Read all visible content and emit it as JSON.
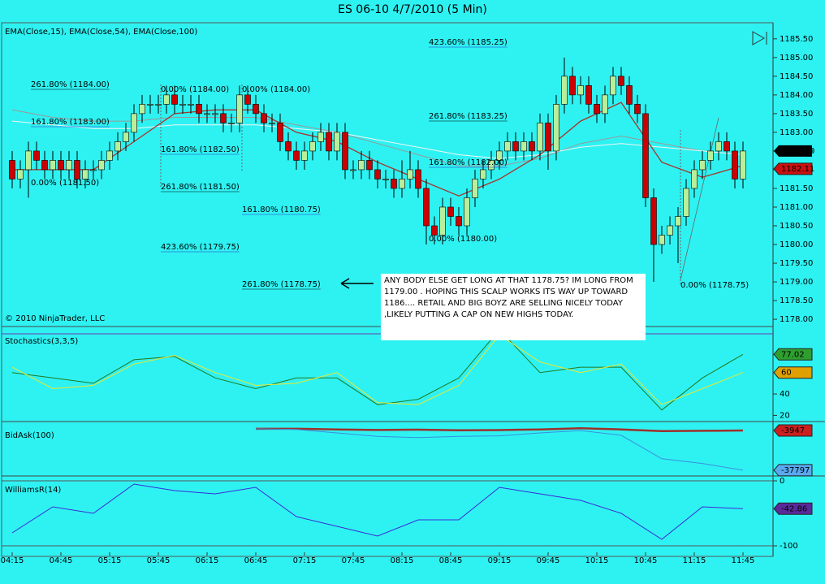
{
  "chart_data": [
    {
      "type": "candlestick",
      "title": "ES 06-10  4/7/2010 (5 Min)",
      "label": "EMA(Close,15), EMA(Close,54), EMA(Close,100)",
      "copyright": "© 2010 NinjaTrader, LLC",
      "note": "ANY BODY ELSE GET LONG AT THAT 1178.75? IM LONG FROM 1179.00 . HOPING THIS SCALP WORKS ITS WAY UP TOWARD 1186.... RETAIL AND BIG BOYZ ARE SELLING NICELY TODAY ,LIKELY PUTTING A CAP ON NEW HIGHS TODAY.",
      "x": [
        "04:15",
        "04:20",
        "04:25",
        "04:30",
        "04:35",
        "04:40",
        "04:45",
        "04:50",
        "04:55",
        "05:00",
        "05:05",
        "05:10",
        "05:15",
        "05:20",
        "05:25",
        "05:30",
        "05:35",
        "05:40",
        "05:45",
        "05:50",
        "05:55",
        "06:00",
        "06:05",
        "06:10",
        "06:15",
        "06:20",
        "06:25",
        "06:30",
        "06:35",
        "06:40",
        "06:45",
        "06:50",
        "06:55",
        "07:00",
        "07:05",
        "07:10",
        "07:15",
        "07:20",
        "07:25",
        "07:30",
        "07:35",
        "07:40",
        "07:45",
        "07:50",
        "07:55",
        "08:00",
        "08:05",
        "08:10",
        "08:15",
        "08:20",
        "08:25",
        "08:30",
        "08:35",
        "08:40",
        "08:45",
        "08:50",
        "08:55",
        "09:00",
        "09:05",
        "09:10",
        "09:15",
        "09:20",
        "09:25",
        "09:30",
        "09:35",
        "09:40",
        "09:45",
        "09:50",
        "09:55",
        "10:00",
        "10:05",
        "10:10",
        "10:15",
        "10:20",
        "10:25",
        "10:30",
        "10:35",
        "10:40",
        "10:45",
        "10:50",
        "10:55",
        "11:00",
        "11:05",
        "11:10",
        "11:15",
        "11:20",
        "11:25",
        "11:30",
        "11:35",
        "11:40",
        "11:45"
      ],
      "open": [
        1182.25,
        1181.75,
        1182.0,
        1182.5,
        1182.25,
        1182.0,
        1182.25,
        1182.0,
        1182.25,
        1181.75,
        1182.0,
        1182.0,
        1182.25,
        1182.5,
        1182.75,
        1183.0,
        1183.5,
        1183.75,
        1183.75,
        1183.75,
        1184.0,
        1183.75,
        1183.75,
        1183.75,
        1183.5,
        1183.5,
        1183.5,
        1183.25,
        1183.25,
        1184.0,
        1183.75,
        1183.5,
        1183.25,
        1183.25,
        1182.75,
        1182.5,
        1182.25,
        1182.5,
        1182.75,
        1183.0,
        1182.5,
        1183.0,
        1182.0,
        1182.0,
        1182.25,
        1182.0,
        1181.75,
        1181.75,
        1181.5,
        1181.75,
        1182.0,
        1181.5,
        1180.5,
        1180.25,
        1181.0,
        1180.75,
        1180.5,
        1181.25,
        1181.75,
        1182.0,
        1182.25,
        1182.5,
        1182.75,
        1182.5,
        1182.75,
        1182.5,
        1183.25,
        1182.5,
        1183.75,
        1184.5,
        1184.0,
        1184.25,
        1183.75,
        1183.5,
        1184.0,
        1184.5,
        1184.25,
        1183.75,
        1183.5,
        1181.25,
        1180.0,
        1180.25,
        1180.5,
        1180.75,
        1181.5,
        1182.0,
        1182.25,
        1182.5,
        1182.75,
        1182.5,
        1181.75
      ],
      "high": [
        1182.5,
        1182.25,
        1182.75,
        1182.75,
        1182.5,
        1182.5,
        1182.5,
        1182.5,
        1182.5,
        1182.25,
        1182.25,
        1182.5,
        1182.75,
        1183.0,
        1183.25,
        1183.75,
        1184.0,
        1184.0,
        1184.0,
        1184.25,
        1184.25,
        1184.0,
        1184.0,
        1184.0,
        1183.75,
        1183.75,
        1183.75,
        1183.5,
        1184.25,
        1184.25,
        1184.0,
        1183.75,
        1183.5,
        1183.5,
        1183.0,
        1182.75,
        1182.75,
        1183.0,
        1183.25,
        1183.25,
        1183.25,
        1183.25,
        1182.25,
        1182.5,
        1182.5,
        1182.25,
        1182.0,
        1182.0,
        1182.25,
        1182.5,
        1182.25,
        1181.75,
        1180.75,
        1181.25,
        1181.25,
        1181.0,
        1181.5,
        1182.0,
        1182.25,
        1182.5,
        1182.75,
        1183.0,
        1183.0,
        1183.0,
        1183.0,
        1183.5,
        1183.5,
        1184.0,
        1185.0,
        1184.75,
        1184.5,
        1184.5,
        1184.0,
        1184.25,
        1184.75,
        1184.75,
        1184.5,
        1184.0,
        1183.75,
        1181.5,
        1180.5,
        1180.75,
        1181.0,
        1181.75,
        1182.25,
        1182.5,
        1182.75,
        1183.0,
        1183.0,
        1182.75,
        1182.75
      ],
      "low": [
        1181.5,
        1181.5,
        1181.25,
        1182.0,
        1181.75,
        1181.75,
        1181.75,
        1181.75,
        1181.5,
        1181.5,
        1181.75,
        1181.75,
        1182.0,
        1182.25,
        1182.5,
        1182.75,
        1183.25,
        1183.5,
        1183.5,
        1183.5,
        1183.5,
        1183.5,
        1183.5,
        1183.25,
        1183.25,
        1183.25,
        1183.0,
        1183.0,
        1183.0,
        1183.5,
        1183.25,
        1183.0,
        1183.0,
        1182.5,
        1182.25,
        1182.0,
        1182.0,
        1182.25,
        1182.5,
        1182.25,
        1182.25,
        1181.75,
        1181.75,
        1181.75,
        1181.75,
        1181.5,
        1181.5,
        1181.25,
        1181.25,
        1181.5,
        1181.25,
        1180.0,
        1180.0,
        1180.0,
        1180.5,
        1180.25,
        1180.25,
        1181.0,
        1181.5,
        1181.75,
        1182.0,
        1182.25,
        1182.25,
        1182.25,
        1182.25,
        1182.25,
        1182.0,
        1182.25,
        1183.5,
        1183.75,
        1183.75,
        1183.5,
        1183.25,
        1183.25,
        1183.75,
        1184.0,
        1183.5,
        1183.25,
        1181.0,
        1179.0,
        1179.75,
        1180.0,
        1179.5,
        1180.5,
        1181.25,
        1181.75,
        1182.0,
        1182.25,
        1182.25,
        1181.5,
        1181.5
      ],
      "close": [
        1181.75,
        1182.0,
        1182.5,
        1182.25,
        1182.0,
        1182.25,
        1182.0,
        1182.25,
        1181.75,
        1182.0,
        1182.0,
        1182.25,
        1182.5,
        1182.75,
        1183.0,
        1183.5,
        1183.75,
        1183.75,
        1183.75,
        1184.0,
        1183.75,
        1183.75,
        1183.75,
        1183.5,
        1183.5,
        1183.5,
        1183.25,
        1183.25,
        1184.0,
        1183.75,
        1183.5,
        1183.25,
        1183.25,
        1182.75,
        1182.5,
        1182.25,
        1182.5,
        1182.75,
        1183.0,
        1182.5,
        1183.0,
        1182.0,
        1182.0,
        1182.25,
        1182.0,
        1181.75,
        1181.75,
        1181.5,
        1181.75,
        1182.0,
        1181.5,
        1180.5,
        1180.25,
        1181.0,
        1180.75,
        1180.5,
        1181.25,
        1181.75,
        1182.0,
        1182.25,
        1182.5,
        1182.75,
        1182.5,
        1182.75,
        1182.5,
        1183.25,
        1182.5,
        1183.75,
        1184.5,
        1184.0,
        1184.25,
        1183.75,
        1183.5,
        1184.0,
        1184.5,
        1184.25,
        1183.75,
        1183.5,
        1181.25,
        1180.0,
        1180.25,
        1180.5,
        1180.75,
        1181.5,
        1182.0,
        1182.25,
        1182.5,
        1182.75,
        1182.5,
        1181.75,
        1182.5
      ],
      "last_label": "1182.50",
      "up_color": "#b9ef9a",
      "down_color": "#cc0000",
      "ylim": [
        1177.85,
        1185.8
      ],
      "yticks": [
        {
          "value": 1178.0,
          "label": "1178.00"
        },
        {
          "value": 1178.5,
          "label": "1178.50"
        },
        {
          "value": 1179.0,
          "label": "1179.00"
        },
        {
          "value": 1179.5,
          "label": "1179.50"
        },
        {
          "value": 1180.0,
          "label": "1180.00"
        },
        {
          "value": 1180.5,
          "label": "1180.50"
        },
        {
          "value": 1181.0,
          "label": "1181.00"
        },
        {
          "value": 1181.5,
          "label": "1181.50"
        },
        {
          "value": 1182.0,
          "label": "1182.00"
        },
        {
          "value": 1182.5,
          "label": "1182.50"
        },
        {
          "value": 1183.0,
          "label": "1183.00"
        },
        {
          "value": 1183.5,
          "label": "1183.50"
        },
        {
          "value": 1184.0,
          "label": "1184.00"
        },
        {
          "value": 1184.5,
          "label": "1184.50"
        },
        {
          "value": 1185.0,
          "label": "1185.00"
        },
        {
          "value": 1185.5,
          "label": "1185.50"
        }
      ],
      "xticks": [
        "04:15",
        "04:45",
        "05:15",
        "05:45",
        "06:15",
        "06:45",
        "07:15",
        "07:45",
        "08:15",
        "08:45",
        "09:15",
        "09:45",
        "10:15",
        "10:45",
        "11:15",
        "11:45"
      ],
      "series": [
        {
          "color": "#999999",
          "x": [
            "04:15",
            "04:40",
            "05:05",
            "05:30",
            "05:55",
            "06:20",
            "06:45",
            "07:10",
            "07:35",
            "08:00",
            "08:25",
            "08:50",
            "09:15",
            "09:40",
            "10:05",
            "10:30",
            "10:55",
            "11:20",
            "11:45"
          ],
          "values": [
            1183.6,
            1183.4,
            1183.3,
            1183.3,
            1183.4,
            1183.4,
            1183.4,
            1183.2,
            1183.0,
            1182.7,
            1182.4,
            1182.1,
            1182.1,
            1182.3,
            1182.7,
            1182.9,
            1182.7,
            1182.5,
            1182.4
          ]
        },
        {
          "color": "#f4f4f4",
          "x": [
            "04:15",
            "04:40",
            "05:05",
            "05:30",
            "05:55",
            "06:20",
            "06:45",
            "07:10",
            "07:35",
            "08:00",
            "08:25",
            "08:50",
            "09:15",
            "09:40",
            "10:05",
            "10:30",
            "10:55",
            "11:20",
            "11:45"
          ],
          "values": [
            1183.3,
            1183.2,
            1183.1,
            1183.1,
            1183.2,
            1183.2,
            1183.2,
            1183.1,
            1183.0,
            1182.8,
            1182.6,
            1182.4,
            1182.3,
            1182.4,
            1182.6,
            1182.7,
            1182.6,
            1182.5,
            1182.4
          ]
        },
        {
          "color": "#a8322a",
          "x": [
            "04:15",
            "04:40",
            "05:05",
            "05:30",
            "05:55",
            "06:20",
            "06:45",
            "07:10",
            "07:35",
            "08:00",
            "08:25",
            "08:50",
            "09:15",
            "09:40",
            "10:05",
            "10:30",
            "10:55",
            "11:20",
            "11:45"
          ],
          "values": [
            1182.0,
            1182.0,
            1182.0,
            1182.75,
            1183.5,
            1183.6,
            1183.6,
            1183.0,
            1182.75,
            1182.2,
            1181.75,
            1181.3,
            1181.75,
            1182.4,
            1183.3,
            1183.8,
            1182.2,
            1181.8,
            1182.11
          ]
        }
      ],
      "annotations": [
        {
          "text": "261.80% (1184.00)",
          "color": "#000000"
        },
        {
          "text": "161.80% (1183.00)",
          "color": "#3030c8"
        },
        {
          "text": "0.00% (1181.50)",
          "color": "#808080"
        },
        {
          "text": "0.00% (1184.00)",
          "color": "#808080"
        },
        {
          "text": "0.00% (1184.00)",
          "color": "#808080"
        },
        {
          "text": "161.80% (1182.50)",
          "color": "#3030c8"
        },
        {
          "text": "261.80% (1181.50)",
          "color": "#000000"
        },
        {
          "text": "423.60% (1179.75)",
          "color": "#3030c8"
        },
        {
          "text": "161.80% (1180.75)",
          "color": "#3030c8"
        },
        {
          "text": "261.80% (1178.75)",
          "color": "#000000"
        },
        {
          "text": "423.60% (1185.25)",
          "color": "#3030c8"
        },
        {
          "text": "261.80% (1183.25)",
          "color": "#000000"
        },
        {
          "text": "161.80% (1182.00)",
          "color": "#3030c8"
        },
        {
          "text": "0.00% (1180.00)",
          "color": "#808080"
        },
        {
          "text": "0.00% (1178.75)",
          "color": "#808080"
        }
      ]
    },
    {
      "type": "line",
      "label": "Stochastics(3,3,5)",
      "ylim": [
        15,
        100
      ],
      "yticks": [
        20,
        40
      ],
      "grid": false,
      "series": [
        {
          "color": "#1f7a1f",
          "box_color": "#2e9e2e",
          "x": [
            "04:15",
            "04:40",
            "05:05",
            "05:30",
            "05:55",
            "06:20",
            "06:45",
            "07:10",
            "07:35",
            "08:00",
            "08:25",
            "08:50",
            "09:15",
            "09:40",
            "10:05",
            "10:30",
            "10:55",
            "11:20",
            "11:45"
          ],
          "values": [
            60,
            55,
            50,
            72,
            75,
            55,
            45,
            55,
            55,
            30,
            35,
            55,
            100,
            60,
            65,
            65,
            25,
            55,
            77.02
          ]
        },
        {
          "color": "#e8e830",
          "box_color": "#e0a000",
          "x": [
            "04:15",
            "04:40",
            "05:05",
            "05:30",
            "05:55",
            "06:20",
            "06:45",
            "07:10",
            "07:35",
            "08:00",
            "08:25",
            "08:50",
            "09:15",
            "09:40",
            "10:05",
            "10:30",
            "10:55",
            "11:20",
            "11:45"
          ],
          "values": [
            65,
            45,
            48,
            68,
            76,
            60,
            48,
            50,
            60,
            32,
            30,
            48,
            95,
            70,
            60,
            68,
            30,
            45,
            60
          ]
        }
      ]
    },
    {
      "type": "line",
      "label": "BidAsk(100)",
      "ylim": [
        -42000,
        3000
      ],
      "grid": false,
      "series": [
        {
          "color": "#a0302a",
          "box_color": "#cc2020",
          "x": [
            "06:45",
            "07:10",
            "07:35",
            "08:00",
            "08:25",
            "08:50",
            "09:15",
            "09:40",
            "10:05",
            "10:30",
            "10:55",
            "11:20",
            "11:45"
          ],
          "values": [
            -2500,
            -2500,
            -3000,
            -3500,
            -3200,
            -3800,
            -3600,
            -3000,
            -2000,
            -3000,
            -4500,
            -4200,
            -3947
          ]
        },
        {
          "color": "#3a8ee0",
          "box_color": "#5aa8f0",
          "x": [
            "06:45",
            "07:10",
            "07:35",
            "08:00",
            "08:25",
            "08:50",
            "09:15",
            "09:40",
            "10:05",
            "10:30",
            "10:55",
            "11:20",
            "11:45"
          ],
          "values": [
            -2500,
            -3000,
            -6000,
            -9000,
            -10000,
            -9000,
            -8500,
            -6000,
            -4000,
            -8000,
            -28000,
            -32000,
            -37797
          ]
        }
      ]
    },
    {
      "type": "line",
      "label": "WilliamsR(14)",
      "ylim": [
        -110,
        5
      ],
      "yticks": [
        0,
        -100
      ],
      "grid": true,
      "series": [
        {
          "color": "#3a2ad8",
          "box_color": "#5a2a9a",
          "x": [
            "04:15",
            "04:40",
            "05:05",
            "05:30",
            "05:55",
            "06:20",
            "06:45",
            "07:10",
            "07:35",
            "08:00",
            "08:25",
            "08:50",
            "09:15",
            "09:40",
            "10:05",
            "10:30",
            "10:55",
            "11:20",
            "11:45"
          ],
          "values": [
            -80,
            -40,
            -50,
            -5,
            -15,
            -20,
            -10,
            -55,
            -70,
            -85,
            -60,
            -60,
            -10,
            -20,
            -30,
            -50,
            -90,
            -40,
            -42.86
          ]
        }
      ]
    }
  ]
}
